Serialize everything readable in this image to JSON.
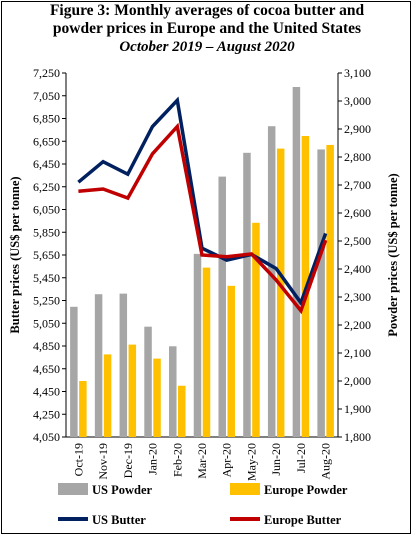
{
  "title": {
    "line1": "Figure 3: Monthly averages of cocoa butter and",
    "line2": "powder prices in Europe and the United States",
    "line3": "October 2019 – August 2020"
  },
  "chart_data": {
    "type": "bar+line",
    "categories": [
      "Oct-19",
      "Nov-19",
      "Dec-19",
      "Jan-20",
      "Feb-20",
      "Mar-20",
      "Apr-20",
      "May-20",
      "Jun-20",
      "Jul-20",
      "Aug-20"
    ],
    "y_left": {
      "label": "Butter prices (US$ per tonne)",
      "min": 4050,
      "max": 7250,
      "ticks": [
        "4,050",
        "4,250",
        "4,450",
        "4,650",
        "4,850",
        "5,050",
        "5,250",
        "5,450",
        "5,650",
        "5,850",
        "6,050",
        "6,250",
        "6,450",
        "6,650",
        "6,850",
        "7,050",
        "7,250"
      ]
    },
    "y_right": {
      "label": "Powder prices (US$ per tonne)",
      "min": 1800,
      "max": 3100,
      "ticks": [
        "1,800",
        "1,900",
        "2,000",
        "2,100",
        "2,200",
        "2,300",
        "2,400",
        "2,500",
        "2,600",
        "2,700",
        "2,800",
        "2,900",
        "3,000",
        "3,100"
      ]
    },
    "series": [
      {
        "name": "US Powder",
        "kind": "bar",
        "axis": "right",
        "color": "#a6a6a6",
        "values": [
          2265,
          2310,
          2312,
          2194,
          2124,
          2454,
          2730,
          2815,
          2910,
          3050,
          2827
        ]
      },
      {
        "name": "Europe Powder",
        "kind": "bar",
        "axis": "right",
        "color": "#ffc000",
        "values": [
          2000,
          2095,
          2130,
          2080,
          1983,
          2405,
          2340,
          2565,
          2830,
          2875,
          2843
        ]
      },
      {
        "name": "US Butter",
        "kind": "line",
        "axis": "left",
        "color": "#002060",
        "values": [
          6290,
          6470,
          6360,
          6780,
          7010,
          5710,
          5605,
          5655,
          5530,
          5230,
          5840
        ]
      },
      {
        "name": "Europe Butter",
        "kind": "line",
        "axis": "left",
        "color": "#c00000",
        "values": [
          6210,
          6230,
          6150,
          6540,
          6780,
          5650,
          5635,
          5660,
          5430,
          5160,
          5780
        ]
      }
    ],
    "legend": {
      "placement": "bottom",
      "columns": 2
    }
  }
}
